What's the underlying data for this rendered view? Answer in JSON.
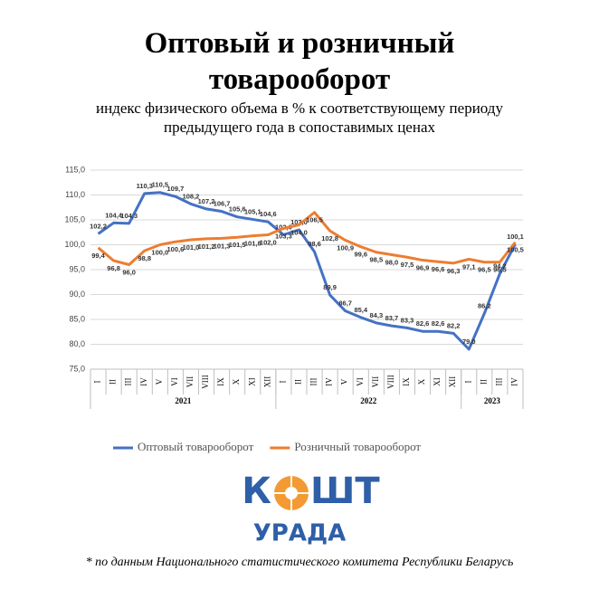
{
  "chart_data": {
    "type": "line",
    "title": "Оптовый и розничный товарооборот",
    "subtitle": "индекс физического объема в % к соответствующему периоду предыдущего года в сопоставимых ценах",
    "categories": [
      "I",
      "II",
      "III",
      "IV",
      "V",
      "VI",
      "VII",
      "VIII",
      "IX",
      "X",
      "XI",
      "XII",
      "I",
      "II",
      "III",
      "IV",
      "V",
      "VI",
      "VII",
      "VIII",
      "IX",
      "X",
      "XI",
      "XII",
      "I",
      "II",
      "III",
      "IV"
    ],
    "groups": [
      {
        "label": "2021",
        "count": 12
      },
      {
        "label": "2022",
        "count": 12
      },
      {
        "label": "2023",
        "count": 4
      }
    ],
    "ylim": [
      75,
      115
    ],
    "yticks": [
      {
        "value": 75,
        "label": "75,0"
      },
      {
        "value": 80,
        "label": "80,0"
      },
      {
        "value": 85,
        "label": "85,0"
      },
      {
        "value": 90,
        "label": "90,0"
      },
      {
        "value": 95,
        "label": "95,0"
      },
      {
        "value": 100,
        "label": "100,0"
      },
      {
        "value": 105,
        "label": "105,0"
      },
      {
        "value": 110,
        "label": "110,0"
      },
      {
        "value": 115,
        "label": "115,0"
      }
    ],
    "grid": true,
    "series": [
      {
        "name": "Оптовый товарооборот",
        "color": "#4472c4",
        "values": [
          102.2,
          104.4,
          104.3,
          110.3,
          110.5,
          109.7,
          108.2,
          107.2,
          106.7,
          105.6,
          105.1,
          104.6,
          102.0,
          103.0,
          98.6,
          89.9,
          86.7,
          85.4,
          84.3,
          83.7,
          83.3,
          82.6,
          82.6,
          82.2,
          79.0,
          86.2,
          94.2,
          100.1
        ],
        "value_labels": [
          "102,2",
          "104,4",
          "104,3",
          "110,3",
          "110,5",
          "109,7",
          "108,2",
          "107,2",
          "106,7",
          "105,6",
          "105,1",
          "104,6",
          "102,0",
          "103,0",
          "98,6",
          "89,9",
          "86,7",
          "85,4",
          "84,3",
          "83,7",
          "83,3",
          "82,6",
          "82,6",
          "82,2",
          "79,0",
          "86,2",
          "94,2",
          "100,1"
        ]
      },
      {
        "name": "Розничный товарооборот",
        "color": "#ed7d31",
        "values": [
          99.4,
          96.8,
          96.0,
          98.8,
          100.0,
          100.6,
          101.0,
          101.2,
          101.3,
          101.5,
          101.8,
          102.0,
          103.3,
          104.0,
          106.5,
          102.8,
          100.9,
          99.6,
          98.5,
          98.0,
          97.5,
          96.9,
          96.6,
          96.3,
          97.1,
          96.5,
          96.5,
          100.5
        ],
        "value_labels": [
          "99,4",
          "96,8",
          "96,0",
          "98,8",
          "100,0",
          "100,6",
          "101,0",
          "101,2",
          "101,3",
          "101,5",
          "101,8",
          "102,0",
          "103,3",
          "104,0",
          "106,5",
          "102,8",
          "100,9",
          "99,6",
          "98,5",
          "98,0",
          "97,5",
          "96,9",
          "96,6",
          "96,3",
          "97,1",
          "96,5",
          "96,5",
          "100,5"
        ]
      }
    ]
  },
  "logo": {
    "left": "К",
    "right": "ШТ",
    "bottom": "УРАДА"
  },
  "footnote": "* по данным Национального статистического комитета Республики Беларусь"
}
